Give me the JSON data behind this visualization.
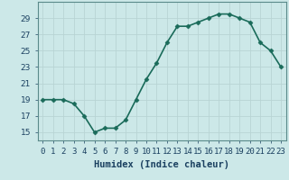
{
  "x": [
    0,
    1,
    2,
    3,
    4,
    5,
    6,
    7,
    8,
    9,
    10,
    11,
    12,
    13,
    14,
    15,
    16,
    17,
    18,
    19,
    20,
    21,
    22,
    23
  ],
  "y": [
    19,
    19,
    19,
    18.5,
    17,
    15,
    15.5,
    15.5,
    16.5,
    19,
    21.5,
    23.5,
    26,
    28,
    28,
    28.5,
    29,
    29.5,
    29.5,
    29,
    28.5,
    26,
    25,
    23
  ],
  "line_color": "#1a6b5a",
  "marker_color": "#1a6b5a",
  "bg_color": "#cce8e8",
  "grid_color": "#b8d4d4",
  "xlabel": "Humidex (Indice chaleur)",
  "ylim": [
    14,
    31
  ],
  "xlim": [
    -0.5,
    23.5
  ],
  "yticks": [
    15,
    17,
    19,
    21,
    23,
    25,
    27,
    29
  ],
  "xticks": [
    0,
    1,
    2,
    3,
    4,
    5,
    6,
    7,
    8,
    9,
    10,
    11,
    12,
    13,
    14,
    15,
    16,
    17,
    18,
    19,
    20,
    21,
    22,
    23
  ],
  "xtick_labels": [
    "0",
    "1",
    "2",
    "3",
    "4",
    "5",
    "6",
    "7",
    "8",
    "9",
    "10",
    "11",
    "12",
    "13",
    "14",
    "15",
    "16",
    "17",
    "18",
    "19",
    "20",
    "21",
    "22",
    "23"
  ],
  "xlabel_fontsize": 7.5,
  "tick_fontsize": 6.5,
  "linewidth": 1.2,
  "markersize": 2.5,
  "label_color": "#1a4060"
}
